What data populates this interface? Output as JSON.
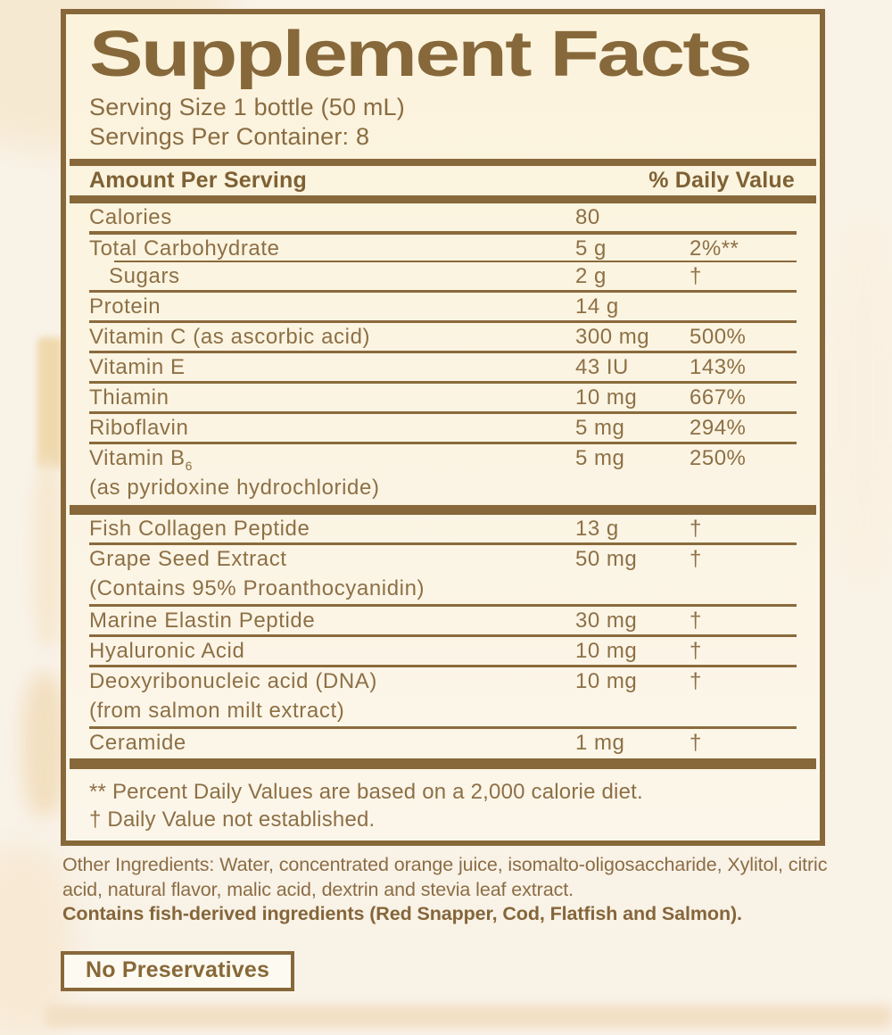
{
  "label": {
    "title": "Supplement Facts",
    "serving_size": "Serving Size 1 bottle (50 mL)",
    "servings_per_container": "Servings Per Container: 8"
  },
  "table": {
    "header": {
      "amount": "Amount Per Serving",
      "dv": "% Daily Value"
    },
    "rows": [
      {
        "name": "Calories",
        "amount": "80",
        "dv": ""
      },
      {
        "name": "Total Carbohydrate",
        "amount": "5 g",
        "dv": "2%**"
      },
      {
        "name": "Sugars",
        "amount": "2 g",
        "dv": "†"
      },
      {
        "name": "Protein",
        "amount": "14 g",
        "dv": ""
      },
      {
        "name": "Vitamin C (as ascorbic acid)",
        "amount": "300 mg",
        "dv": "500%"
      },
      {
        "name": "Vitamin E",
        "amount": "43 IU",
        "dv": "143%"
      },
      {
        "name": "Thiamin",
        "amount": "10 mg",
        "dv": "667%"
      },
      {
        "name": "Riboflavin",
        "amount": "5 mg",
        "dv": "294%"
      },
      {
        "name": "Vitamin B",
        "name_sub": "6",
        "name2": "(as pyridoxine hydrochloride)",
        "amount": "5 mg",
        "dv": "250%"
      },
      {
        "name": "Fish Collagen Peptide",
        "amount": "13 g",
        "dv": "†"
      },
      {
        "name": "Grape Seed Extract",
        "name2": "(Contains 95% Proanthocyanidin)",
        "amount": "50 mg",
        "dv": "†"
      },
      {
        "name": "Marine Elastin Peptide",
        "amount": "30 mg",
        "dv": "†"
      },
      {
        "name": "Hyaluronic Acid",
        "amount": "10 mg",
        "dv": "†"
      },
      {
        "name": "Deoxyribonucleic acid (DNA)",
        "name2": "(from salmon milt extract)",
        "amount": "10 mg",
        "dv": "†"
      },
      {
        "name": "Ceramide",
        "amount": "1 mg",
        "dv": "†"
      }
    ],
    "footnotes": {
      "daily_values": "** Percent Daily Values are based on a 2,000 calorie diet.",
      "not_established": "† Daily Value not established."
    }
  },
  "other_ingredients": {
    "text": "Other Ingredients: Water, concentrated orange juice, isomalto-oligosaccharide, Xylitol, citric acid, natural flavor, malic acid, dextrin and stevia leaf extract.",
    "allergen": "Contains fish-derived ingredients (Red Snapper, Cod, Flatfish and Salmon)."
  },
  "badge": {
    "label": "No Preservatives"
  },
  "colors": {
    "brown": "#87683a",
    "text_brown": "#8d7046",
    "cream": "#fbf4e0",
    "page_background": "#f9f2e7",
    "peach_wash": "#f3dfc0"
  }
}
